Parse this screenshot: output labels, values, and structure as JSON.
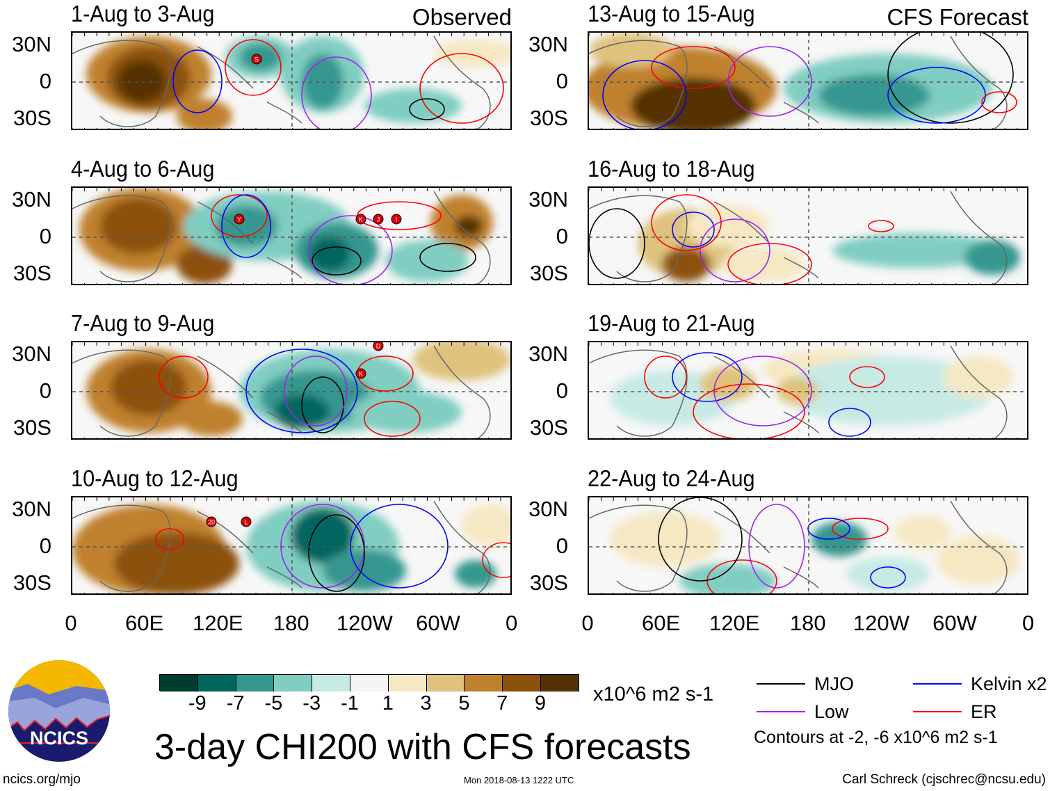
{
  "panels": [
    {
      "title": "1-Aug to 3-Aug",
      "tag": "Observed",
      "storms": [
        "S"
      ]
    },
    {
      "title": "4-Aug to 6-Aug",
      "tag": "",
      "storms": [
        "Y",
        "K",
        "J",
        "I"
      ]
    },
    {
      "title": "7-Aug to 9-Aug",
      "tag": "",
      "storms": [
        "K",
        "D"
      ]
    },
    {
      "title": "10-Aug to 12-Aug",
      "tag": "",
      "storms": [
        "20",
        "L"
      ]
    },
    {
      "title": "13-Aug to 15-Aug",
      "tag": "CFS Forecast",
      "storms": []
    },
    {
      "title": "16-Aug to 18-Aug",
      "tag": "",
      "storms": []
    },
    {
      "title": "19-Aug to 21-Aug",
      "tag": "",
      "storms": []
    },
    {
      "title": "22-Aug to 24-Aug",
      "tag": "",
      "storms": []
    }
  ],
  "lat_labels": [
    "30N",
    "0",
    "30S"
  ],
  "lon_labels": [
    "0",
    "60E",
    "120E",
    "180",
    "120W",
    "60W",
    "0"
  ],
  "colorbar": {
    "colors": [
      "#003c30",
      "#01665e",
      "#35978f",
      "#80cdc1",
      "#c7eae5",
      "#f5f5f5",
      "#f6e8c3",
      "#dfc27d",
      "#bf812d",
      "#8c510a",
      "#543005"
    ],
    "labels": [
      "-9",
      "-7",
      "-5",
      "-3",
      "-1",
      "1",
      "3",
      "5",
      "7",
      "9"
    ],
    "units": "x10^6 m2 s-1"
  },
  "legend": {
    "items": [
      {
        "label": "MJO",
        "color": "#000000"
      },
      {
        "label": "Kelvin x2",
        "color": "#0000ff"
      },
      {
        "label": "Low",
        "color": "#a020f0"
      },
      {
        "label": "ER",
        "color": "#ff0000"
      }
    ],
    "note": "Contours at -2, -6 x10^6 m2 s-1"
  },
  "logo_text": "NCICS",
  "main_title": "3-day CHI200 with CFS forecasts",
  "footer": {
    "left": "ncics.org/mjo",
    "center": "Mon 2018-08-13 1222 UTC",
    "right": "Carl Schreck (cjschrec@ncsu.edu)"
  }
}
